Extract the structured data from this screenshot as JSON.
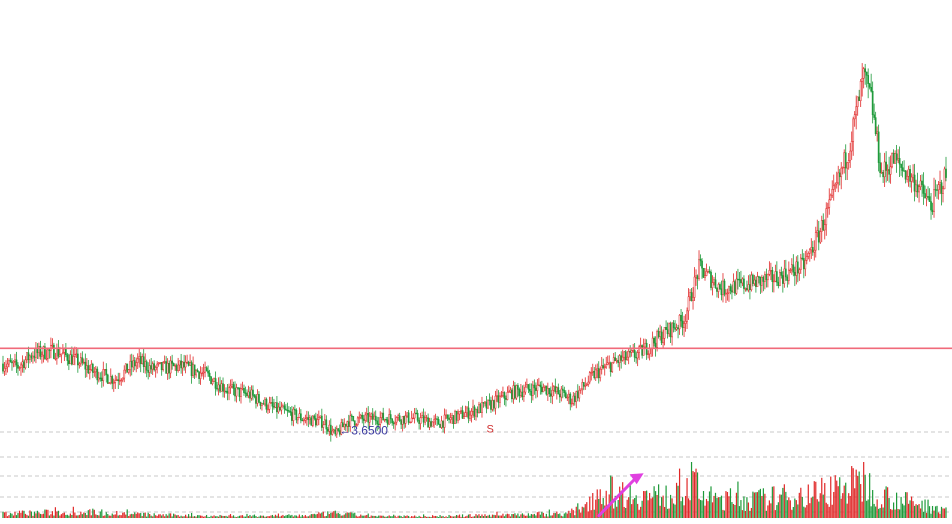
{
  "chart_data": {
    "type": "candlestick",
    "title": "",
    "xlabel": "",
    "ylabel": "",
    "grid": true,
    "colors": {
      "up": "#e02828",
      "down": "#1e9a3a",
      "resistance_line": "#f06a7a",
      "arrow": "#e040e0",
      "grid": "#c8c8c8"
    },
    "ylim": [
      3.0,
      11.5
    ],
    "volume_ylim": [
      0,
      100
    ],
    "resistance_level": 5.35,
    "low_annotation": {
      "text": "←3.6500",
      "value": 3.65
    },
    "event_marker": {
      "text": "S"
    },
    "price_anchors": [
      [
        0,
        5.05
      ],
      [
        10,
        5.0
      ],
      [
        20,
        5.25
      ],
      [
        35,
        5.3
      ],
      [
        50,
        5.1
      ],
      [
        60,
        4.9
      ],
      [
        75,
        4.75
      ],
      [
        90,
        5.1
      ],
      [
        100,
        4.95
      ],
      [
        120,
        5.0
      ],
      [
        135,
        4.85
      ],
      [
        150,
        4.55
      ],
      [
        165,
        4.45
      ],
      [
        180,
        4.2
      ],
      [
        200,
        4.0
      ],
      [
        215,
        3.92
      ],
      [
        222,
        3.65
      ],
      [
        230,
        3.95
      ],
      [
        250,
        4.0
      ],
      [
        275,
        4.0
      ],
      [
        290,
        3.9
      ],
      [
        310,
        4.1
      ],
      [
        325,
        4.25
      ],
      [
        340,
        4.5
      ],
      [
        360,
        4.6
      ],
      [
        375,
        4.45
      ],
      [
        380,
        4.35
      ],
      [
        395,
        4.85
      ],
      [
        410,
        5.1
      ],
      [
        425,
        5.25
      ],
      [
        440,
        5.6
      ],
      [
        455,
        5.9
      ],
      [
        465,
        6.9
      ],
      [
        480,
        6.5
      ],
      [
        500,
        6.6
      ],
      [
        520,
        6.75
      ],
      [
        535,
        6.95
      ],
      [
        545,
        7.55
      ],
      [
        555,
        8.3
      ],
      [
        565,
        9.2
      ],
      [
        575,
        10.6
      ],
      [
        580,
        10.15
      ],
      [
        587,
        8.7
      ],
      [
        595,
        9.0
      ],
      [
        610,
        8.55
      ],
      [
        620,
        8.1
      ],
      [
        630,
        8.7
      ]
    ],
    "volume_anchors": [
      [
        0,
        12
      ],
      [
        60,
        15
      ],
      [
        100,
        8
      ],
      [
        150,
        5
      ],
      [
        200,
        6
      ],
      [
        222,
        12
      ],
      [
        250,
        4
      ],
      [
        300,
        5
      ],
      [
        330,
        8
      ],
      [
        380,
        12
      ],
      [
        390,
        40
      ],
      [
        400,
        70
      ],
      [
        430,
        55
      ],
      [
        450,
        55
      ],
      [
        460,
        95
      ],
      [
        470,
        50
      ],
      [
        500,
        45
      ],
      [
        540,
        60
      ],
      [
        560,
        80
      ],
      [
        575,
        85
      ],
      [
        590,
        55
      ],
      [
        610,
        35
      ],
      [
        630,
        25
      ]
    ]
  }
}
